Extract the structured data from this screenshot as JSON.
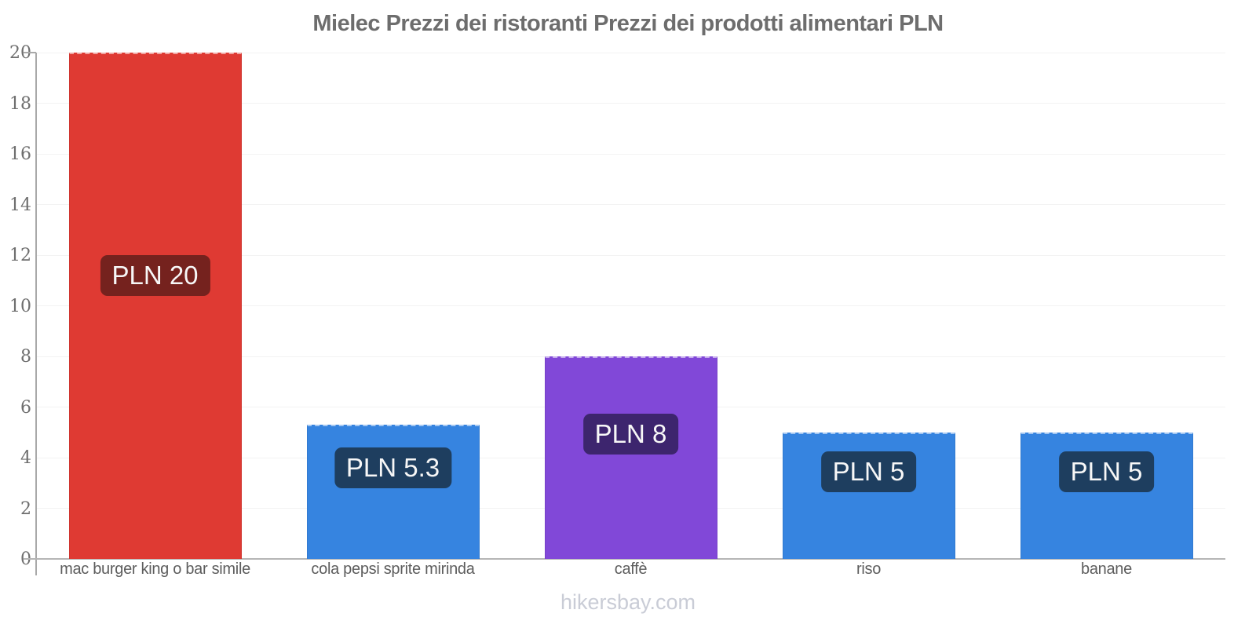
{
  "title": "Mielec Prezzi dei ristoranti Prezzi dei prodotti alimentari PLN",
  "footer": {
    "text": "hikersbay.com"
  },
  "palette": {
    "red_bar": "#df3a33",
    "blue_bar": "#3684e0",
    "purple_bar": "#8148d8",
    "badge_dark_red": "#75221e",
    "badge_dark_blue": "#1e3e5f",
    "badge_dark_purple": "#3d256e",
    "axis_line": "#a9a9a9",
    "gridline": "#f3f3f3",
    "title_text": "#6d6d6d",
    "tick_text": "#6e6e6e",
    "category_text": "#5d5d5d",
    "watermark_text": "#c9ccd6"
  },
  "chart_data": {
    "type": "bar",
    "title": "Mielec Prezzi dei ristoranti Prezzi dei prodotti alimentari PLN",
    "categories": [
      "mac burger king o bar simile",
      "cola pepsi sprite mirinda",
      "caffè",
      "riso",
      "banane"
    ],
    "values": [
      20,
      5.3,
      8,
      5,
      5
    ],
    "bar_labels": [
      "PLN 20",
      "PLN 5.3",
      "PLN 8",
      "PLN 5",
      "PLN 5"
    ],
    "bar_colors": [
      "#df3a33",
      "#3684e0",
      "#8148d8",
      "#3684e0",
      "#3684e0"
    ],
    "badge_colors": [
      "#75221e",
      "#1e3e5f",
      "#3d256e",
      "#1e3e5f",
      "#1e3e5f"
    ],
    "currency": "PLN",
    "xlabel": "",
    "ylabel": "",
    "ylim": [
      0,
      20
    ],
    "yticks": [
      0,
      2,
      4,
      6,
      8,
      10,
      12,
      14,
      16,
      18,
      20
    ],
    "grid": true,
    "legend": "none"
  }
}
